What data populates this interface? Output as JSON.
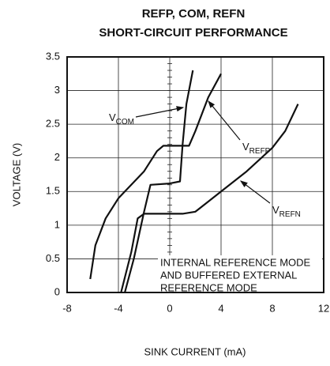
{
  "chart_data": {
    "type": "line",
    "title": [
      "REFP, COM, REFN",
      "SHORT-CIRCUIT PERFORMANCE"
    ],
    "xlabel": "SINK CURRENT (mA)",
    "ylabel": "VOLTAGE (V)",
    "xlim": [
      -8,
      12
    ],
    "xticks": [
      -8,
      -4,
      0,
      4,
      8,
      12
    ],
    "ylim": [
      0,
      3.5
    ],
    "yticks": [
      0,
      0.5,
      1.0,
      1.5,
      2.0,
      2.5,
      3.0,
      3.5
    ],
    "grid": true,
    "series": [
      {
        "label": {
          "base": "V",
          "sub": "COM"
        },
        "color": "#111111",
        "x": [
          -3.5,
          -2.8,
          -2.0,
          -1.5,
          0,
          0.8,
          1.0,
          1.3,
          1.8
        ],
        "values": [
          0,
          0.5,
          1.2,
          1.6,
          1.62,
          1.65,
          2.2,
          2.8,
          3.3
        ]
      },
      {
        "label": {
          "base": "V",
          "sub": "REFP"
        },
        "color": "#111111",
        "x": [
          -6.2,
          -5.8,
          -5.0,
          -4.0,
          -2.0,
          -1.0,
          -0.5,
          1.5,
          2.0,
          3.0,
          4.0
        ],
        "values": [
          0.2,
          0.7,
          1.1,
          1.4,
          1.8,
          2.1,
          2.18,
          2.18,
          2.4,
          2.9,
          3.25
        ]
      },
      {
        "label": {
          "base": "V",
          "sub": "REFN"
        },
        "color": "#111111",
        "x": [
          -3.8,
          -3.0,
          -2.5,
          -2.0,
          1.0,
          2.0,
          4.0,
          6.0,
          8.0,
          9.0,
          10.0
        ],
        "values": [
          0,
          0.6,
          1.1,
          1.17,
          1.17,
          1.2,
          1.5,
          1.8,
          2.15,
          2.4,
          2.8
        ]
      }
    ],
    "note": [
      "INTERNAL REFERENCE MODE",
      "AND BUFFERED EXTERNAL",
      "REFERENCE MODE"
    ]
  }
}
